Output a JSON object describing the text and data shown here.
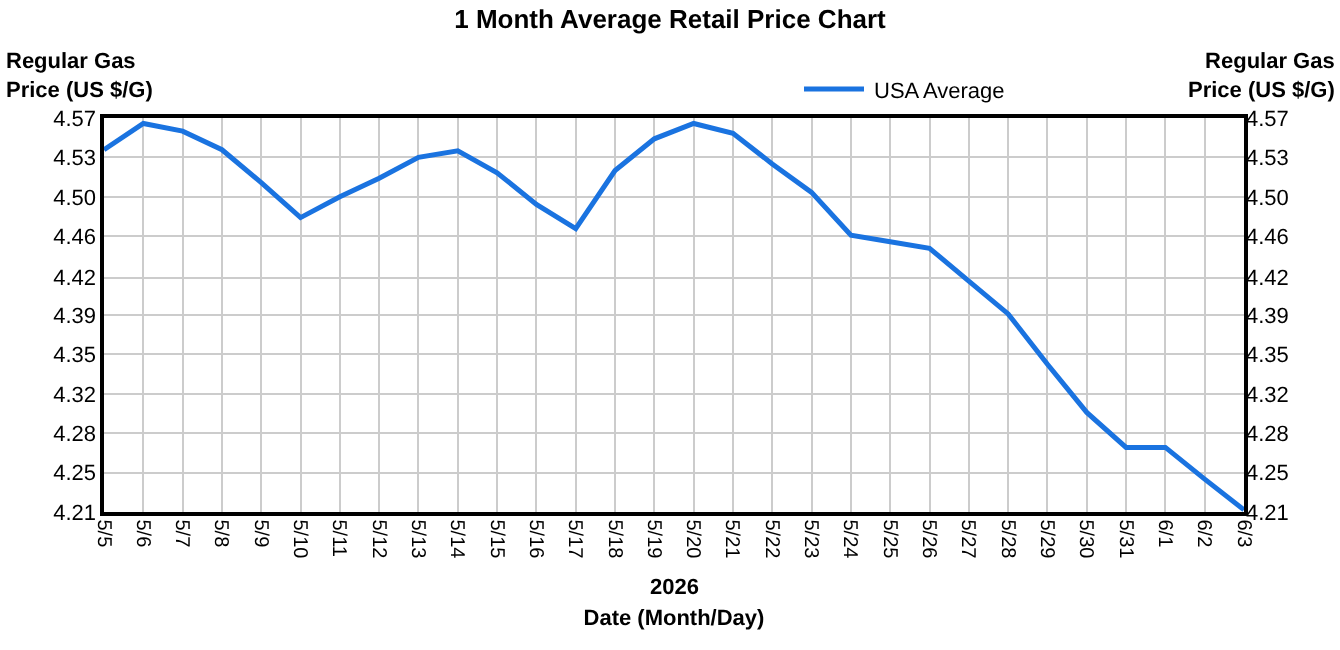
{
  "chart_data": {
    "type": "line",
    "title": "1 Month Average Retail Price Chart",
    "xlabel": "Date (Month/Day)",
    "ylabel": "Regular Gas\nPrice (US $/G)",
    "y2label": "Regular Gas\nPrice (US $/G)",
    "annotations": [
      "2026"
    ],
    "categories": [
      "5/5",
      "5/6",
      "5/7",
      "5/8",
      "5/9",
      "5/10",
      "5/11",
      "5/12",
      "5/13",
      "5/14",
      "5/15",
      "5/16",
      "5/17",
      "5/18",
      "5/19",
      "5/20",
      "5/21",
      "5/22",
      "5/23",
      "5/24",
      "5/25",
      "5/26",
      "5/27",
      "5/28",
      "5/29",
      "5/30",
      "5/31",
      "6/1",
      "6/2",
      "6/3"
    ],
    "series": [
      {
        "name": "USA Average",
        "color": "#1a73e0",
        "values": [
          4.541,
          4.565,
          4.558,
          4.541,
          4.511,
          4.479,
          4.498,
          4.515,
          4.534,
          4.54,
          4.52,
          4.491,
          4.469,
          4.522,
          4.551,
          4.565,
          4.556,
          4.528,
          4.502,
          4.463,
          4.457,
          4.451,
          4.421,
          4.391,
          4.345,
          4.301,
          4.269,
          4.269,
          4.24,
          4.212
        ]
      }
    ],
    "ylim": [
      4.21,
      4.57
    ],
    "yticks": [
      4.21,
      {
        "value": 4.246,
        "label": "4.25"
      },
      {
        "value": 4.282,
        "label": "4.28"
      },
      {
        "value": 4.318,
        "label": "4.32"
      },
      {
        "value": 4.354,
        "label": "4.35"
      },
      4.39,
      {
        "value": 4.424,
        "label": "4.42"
      },
      {
        "value": 4.462,
        "label": "4.46"
      },
      {
        "value": 4.498,
        "label": "4.50"
      },
      {
        "value": 4.534,
        "label": "4.53"
      },
      4.57
    ],
    "y2lim": [
      4.21,
      4.57
    ],
    "y2ticks": [
      4.21,
      {
        "value": 4.246,
        "label": "4.25"
      },
      {
        "value": 4.282,
        "label": "4.28"
      },
      {
        "value": 4.318,
        "label": "4.32"
      },
      {
        "value": 4.354,
        "label": "4.35"
      },
      4.39,
      {
        "value": 4.424,
        "label": "4.42"
      },
      {
        "value": 4.462,
        "label": "4.46"
      },
      {
        "value": 4.498,
        "label": "4.50"
      },
      {
        "value": 4.534,
        "label": "4.53"
      },
      4.57
    ],
    "grid": true,
    "legend": "top right",
    "marker": "none",
    "line_style": "solid"
  }
}
